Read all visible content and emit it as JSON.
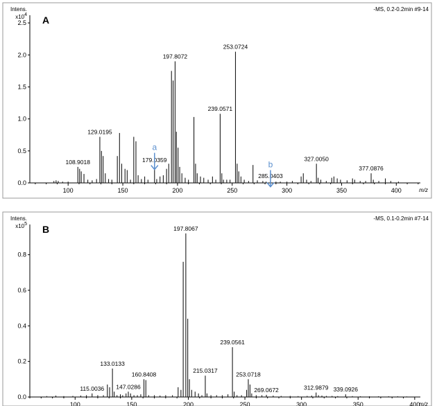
{
  "chart_data": [
    {
      "type": "bar",
      "panel_label": "A",
      "header_text": "-MS, 0.2-0.2min #9-14",
      "y_title": "Intens.",
      "y_multiplier_base": "x10",
      "y_multiplier_exp": "4",
      "x_title": "m/z",
      "xlim": [
        65,
        422
      ],
      "ylim": [
        0,
        2.62
      ],
      "xticks": [
        100,
        150,
        200,
        250,
        300,
        350,
        400
      ],
      "yticks": [
        0.0,
        0.5,
        1.0,
        1.5,
        2.0,
        2.5
      ],
      "ytick_labels": [
        "0.0",
        "0.5",
        "1.0",
        "1.5",
        "2.0",
        "2.5"
      ],
      "peaks": [
        {
          "x": 87.0,
          "y": 0.03
        },
        {
          "x": 89.0,
          "y": 0.04
        },
        {
          "x": 91.0,
          "y": 0.03
        },
        {
          "x": 95.0,
          "y": 0.02
        },
        {
          "x": 100.0,
          "y": 0.02
        },
        {
          "x": 108.9,
          "y": 0.25
        },
        {
          "x": 110.5,
          "y": 0.22
        },
        {
          "x": 112.0,
          "y": 0.18
        },
        {
          "x": 114.5,
          "y": 0.14
        },
        {
          "x": 118.0,
          "y": 0.05
        },
        {
          "x": 122.0,
          "y": 0.04
        },
        {
          "x": 126.0,
          "y": 0.06
        },
        {
          "x": 129.0,
          "y": 0.72
        },
        {
          "x": 130.5,
          "y": 0.5
        },
        {
          "x": 132.0,
          "y": 0.42
        },
        {
          "x": 134.0,
          "y": 0.15
        },
        {
          "x": 137.0,
          "y": 0.06
        },
        {
          "x": 140.0,
          "y": 0.05
        },
        {
          "x": 145.0,
          "y": 0.42
        },
        {
          "x": 147.0,
          "y": 0.78
        },
        {
          "x": 149.0,
          "y": 0.3
        },
        {
          "x": 152.0,
          "y": 0.22
        },
        {
          "x": 154.0,
          "y": 0.2
        },
        {
          "x": 157.0,
          "y": 0.05
        },
        {
          "x": 160.0,
          "y": 0.72
        },
        {
          "x": 162.0,
          "y": 0.65
        },
        {
          "x": 164.0,
          "y": 0.12
        },
        {
          "x": 167.0,
          "y": 0.06
        },
        {
          "x": 170.0,
          "y": 0.1
        },
        {
          "x": 173.0,
          "y": 0.05
        },
        {
          "x": 179.0,
          "y": 0.28
        },
        {
          "x": 181.0,
          "y": 0.06
        },
        {
          "x": 184.0,
          "y": 0.1
        },
        {
          "x": 187.0,
          "y": 0.12
        },
        {
          "x": 190.0,
          "y": 0.22
        },
        {
          "x": 192.0,
          "y": 0.3
        },
        {
          "x": 194.5,
          "y": 1.75
        },
        {
          "x": 196.0,
          "y": 1.6
        },
        {
          "x": 197.8,
          "y": 1.9
        },
        {
          "x": 199.0,
          "y": 0.8
        },
        {
          "x": 200.5,
          "y": 0.55
        },
        {
          "x": 202.0,
          "y": 0.25
        },
        {
          "x": 204.0,
          "y": 0.15
        },
        {
          "x": 207.0,
          "y": 0.08
        },
        {
          "x": 210.0,
          "y": 0.05
        },
        {
          "x": 215.0,
          "y": 1.03
        },
        {
          "x": 216.5,
          "y": 0.3
        },
        {
          "x": 218.0,
          "y": 0.15
        },
        {
          "x": 221.0,
          "y": 0.1
        },
        {
          "x": 224.0,
          "y": 0.08
        },
        {
          "x": 228.0,
          "y": 0.05
        },
        {
          "x": 232.0,
          "y": 0.1
        },
        {
          "x": 235.0,
          "y": 0.05
        },
        {
          "x": 239.0,
          "y": 1.08
        },
        {
          "x": 240.5,
          "y": 0.15
        },
        {
          "x": 242.0,
          "y": 0.05
        },
        {
          "x": 245.0,
          "y": 0.05
        },
        {
          "x": 248.0,
          "y": 0.05
        },
        {
          "x": 253.0,
          "y": 2.05
        },
        {
          "x": 254.5,
          "y": 0.3
        },
        {
          "x": 256.0,
          "y": 0.18
        },
        {
          "x": 258.0,
          "y": 0.1
        },
        {
          "x": 261.0,
          "y": 0.05
        },
        {
          "x": 265.0,
          "y": 0.03
        },
        {
          "x": 269.0,
          "y": 0.28
        },
        {
          "x": 273.0,
          "y": 0.04
        },
        {
          "x": 278.0,
          "y": 0.03
        },
        {
          "x": 281.0,
          "y": 0.02
        },
        {
          "x": 285.0,
          "y": 0.03
        },
        {
          "x": 290.0,
          "y": 0.02
        },
        {
          "x": 294.0,
          "y": 0.02
        },
        {
          "x": 300.0,
          "y": 0.02
        },
        {
          "x": 305.0,
          "y": 0.03
        },
        {
          "x": 313.0,
          "y": 0.1
        },
        {
          "x": 315.0,
          "y": 0.15
        },
        {
          "x": 318.0,
          "y": 0.05
        },
        {
          "x": 322.0,
          "y": 0.03
        },
        {
          "x": 327.0,
          "y": 0.3
        },
        {
          "x": 328.5,
          "y": 0.08
        },
        {
          "x": 331.0,
          "y": 0.05
        },
        {
          "x": 336.0,
          "y": 0.03
        },
        {
          "x": 341.0,
          "y": 0.08
        },
        {
          "x": 343.0,
          "y": 0.1
        },
        {
          "x": 346.0,
          "y": 0.07
        },
        {
          "x": 349.0,
          "y": 0.05
        },
        {
          "x": 355.0,
          "y": 0.04
        },
        {
          "x": 360.0,
          "y": 0.07
        },
        {
          "x": 362.0,
          "y": 0.05
        },
        {
          "x": 367.0,
          "y": 0.03
        },
        {
          "x": 372.0,
          "y": 0.03
        },
        {
          "x": 377.0,
          "y": 0.15
        },
        {
          "x": 379.0,
          "y": 0.05
        },
        {
          "x": 384.0,
          "y": 0.03
        },
        {
          "x": 390.0,
          "y": 0.07
        },
        {
          "x": 395.0,
          "y": 0.03
        },
        {
          "x": 402.0,
          "y": 0.02
        }
      ],
      "peak_labels": [
        {
          "text": "108.9018",
          "x": 108.9,
          "y": 0.25
        },
        {
          "text": "129.0195",
          "x": 129.0,
          "y": 0.72
        },
        {
          "text": "179.0359",
          "x": 179.0,
          "y": 0.28
        },
        {
          "text": "197.8072",
          "x": 197.8,
          "y": 1.9
        },
        {
          "text": "239.0571",
          "x": 239.0,
          "y": 1.08
        },
        {
          "text": "253.0724",
          "x": 253.0,
          "y": 2.05
        },
        {
          "text": "285.0403",
          "x": 285.0,
          "y": 0.03
        },
        {
          "text": "327.0050",
          "x": 327.0,
          "y": 0.3
        },
        {
          "text": "377.0876",
          "x": 377.0,
          "y": 0.15
        }
      ],
      "annotations": [
        {
          "letter": "a",
          "x": 179.0,
          "y": 0.47,
          "color": "#5b8fce"
        },
        {
          "letter": "b",
          "x": 285.0,
          "y": 0.2,
          "color": "#5b8fce"
        }
      ]
    },
    {
      "type": "bar",
      "panel_label": "B",
      "header_text": "-MS, 0.1-0.2min #7-14",
      "y_title": "Intens.",
      "y_multiplier_base": "x10",
      "y_multiplier_exp": "5",
      "x_title": "m/z",
      "xlim": [
        60,
        405
      ],
      "ylim": [
        0,
        0.97
      ],
      "xticks": [
        100,
        150,
        200,
        250,
        300,
        350,
        400
      ],
      "yticks": [
        0.0,
        0.2,
        0.4,
        0.6,
        0.8
      ],
      "ytick_labels": [
        "0.0",
        "0.2",
        "0.4",
        "0.6",
        "0.8"
      ],
      "peaks": [
        {
          "x": 75.0,
          "y": 0.005
        },
        {
          "x": 83.0,
          "y": 0.008
        },
        {
          "x": 90.0,
          "y": 0.005
        },
        {
          "x": 98.0,
          "y": 0.006
        },
        {
          "x": 105.0,
          "y": 0.008
        },
        {
          "x": 110.0,
          "y": 0.01
        },
        {
          "x": 115.0,
          "y": 0.02
        },
        {
          "x": 120.0,
          "y": 0.01
        },
        {
          "x": 125.0,
          "y": 0.01
        },
        {
          "x": 128.5,
          "y": 0.07
        },
        {
          "x": 130.5,
          "y": 0.055
        },
        {
          "x": 133.0,
          "y": 0.16
        },
        {
          "x": 134.5,
          "y": 0.03
        },
        {
          "x": 137.0,
          "y": 0.01
        },
        {
          "x": 140.0,
          "y": 0.015
        },
        {
          "x": 142.0,
          "y": 0.01
        },
        {
          "x": 145.0,
          "y": 0.02
        },
        {
          "x": 147.0,
          "y": 0.03
        },
        {
          "x": 149.0,
          "y": 0.02
        },
        {
          "x": 152.0,
          "y": 0.01
        },
        {
          "x": 155.0,
          "y": 0.01
        },
        {
          "x": 158.0,
          "y": 0.015
        },
        {
          "x": 160.8,
          "y": 0.1
        },
        {
          "x": 162.5,
          "y": 0.095
        },
        {
          "x": 165.0,
          "y": 0.01
        },
        {
          "x": 170.0,
          "y": 0.01
        },
        {
          "x": 175.0,
          "y": 0.008
        },
        {
          "x": 180.0,
          "y": 0.01
        },
        {
          "x": 186.0,
          "y": 0.01
        },
        {
          "x": 191.0,
          "y": 0.055
        },
        {
          "x": 193.5,
          "y": 0.04
        },
        {
          "x": 195.5,
          "y": 0.76
        },
        {
          "x": 197.8,
          "y": 0.92
        },
        {
          "x": 199.5,
          "y": 0.44
        },
        {
          "x": 201.0,
          "y": 0.1
        },
        {
          "x": 203.0,
          "y": 0.04
        },
        {
          "x": 206.0,
          "y": 0.03
        },
        {
          "x": 209.0,
          "y": 0.02
        },
        {
          "x": 212.0,
          "y": 0.01
        },
        {
          "x": 215.0,
          "y": 0.12
        },
        {
          "x": 216.5,
          "y": 0.02
        },
        {
          "x": 220.0,
          "y": 0.01
        },
        {
          "x": 225.0,
          "y": 0.01
        },
        {
          "x": 230.0,
          "y": 0.01
        },
        {
          "x": 235.0,
          "y": 0.015
        },
        {
          "x": 239.0,
          "y": 0.28
        },
        {
          "x": 240.5,
          "y": 0.03
        },
        {
          "x": 243.0,
          "y": 0.01
        },
        {
          "x": 247.0,
          "y": 0.01
        },
        {
          "x": 251.5,
          "y": 0.04
        },
        {
          "x": 253.0,
          "y": 0.1
        },
        {
          "x": 254.5,
          "y": 0.07
        },
        {
          "x": 256.0,
          "y": 0.02
        },
        {
          "x": 260.0,
          "y": 0.01
        },
        {
          "x": 265.0,
          "y": 0.01
        },
        {
          "x": 269.0,
          "y": 0.012
        },
        {
          "x": 275.0,
          "y": 0.008
        },
        {
          "x": 282.0,
          "y": 0.006
        },
        {
          "x": 290.0,
          "y": 0.006
        },
        {
          "x": 297.0,
          "y": 0.005
        },
        {
          "x": 305.0,
          "y": 0.006
        },
        {
          "x": 309.0,
          "y": 0.008
        },
        {
          "x": 312.9,
          "y": 0.025
        },
        {
          "x": 315.0,
          "y": 0.01
        },
        {
          "x": 318.0,
          "y": 0.008
        },
        {
          "x": 322.0,
          "y": 0.006
        },
        {
          "x": 327.0,
          "y": 0.006
        },
        {
          "x": 332.0,
          "y": 0.005
        },
        {
          "x": 339.0,
          "y": 0.015
        },
        {
          "x": 345.0,
          "y": 0.005
        },
        {
          "x": 352.0,
          "y": 0.004
        },
        {
          "x": 360.0,
          "y": 0.004
        },
        {
          "x": 368.0,
          "y": 0.004
        },
        {
          "x": 377.0,
          "y": 0.004
        },
        {
          "x": 385.0,
          "y": 0.004
        },
        {
          "x": 393.0,
          "y": 0.003
        }
      ],
      "peak_labels": [
        {
          "text": "115.0036",
          "x": 115.0,
          "y": 0.02
        },
        {
          "text": "133.0133",
          "x": 133.0,
          "y": 0.16
        },
        {
          "text": "147.0286",
          "x": 147.0,
          "y": 0.03
        },
        {
          "text": "160.8408",
          "x": 160.8,
          "y": 0.1
        },
        {
          "text": "197.8067",
          "x": 197.8,
          "y": 0.92
        },
        {
          "text": "215.0317",
          "x": 215.0,
          "y": 0.12
        },
        {
          "text": "239.0561",
          "x": 239.0,
          "y": 0.28
        },
        {
          "text": "253.0718",
          "x": 253.0,
          "y": 0.1
        },
        {
          "text": "269.0672",
          "x": 269.0,
          "y": 0.012
        },
        {
          "text": "312.9879",
          "x": 312.9,
          "y": 0.025
        },
        {
          "text": "339.0926",
          "x": 339.0,
          "y": 0.015
        }
      ],
      "annotations": []
    }
  ]
}
